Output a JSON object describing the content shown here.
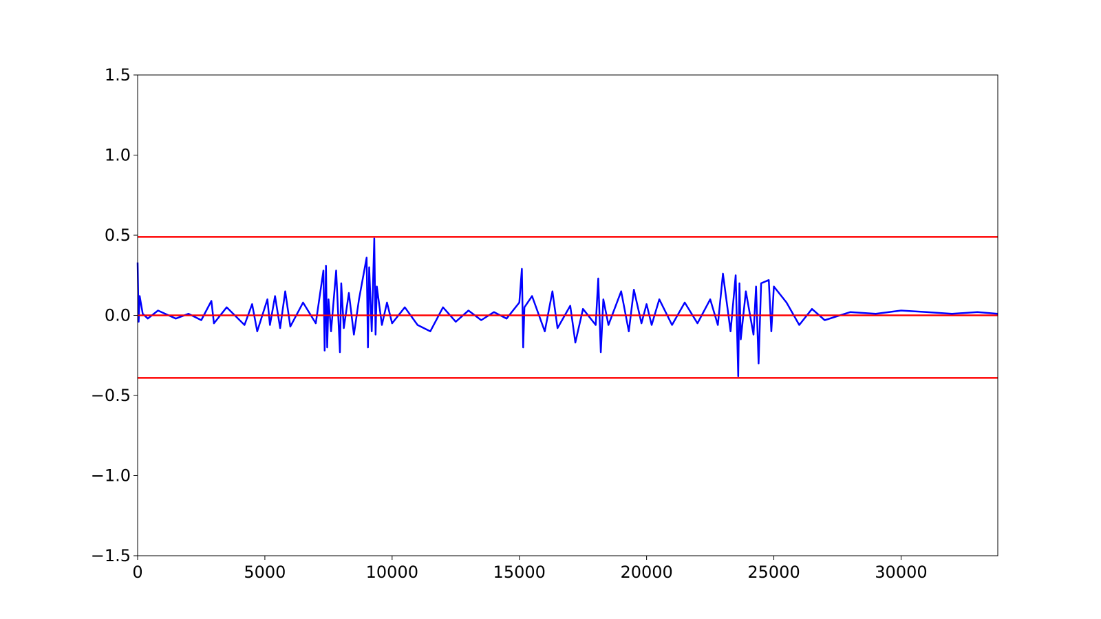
{
  "chart_data": {
    "type": "line",
    "title": "",
    "xlabel": "",
    "ylabel": "",
    "xlim": [
      0,
      33800
    ],
    "ylim": [
      -1.5,
      1.5
    ],
    "grid": false,
    "x_ticks": [
      {
        "value": 0,
        "label": "0"
      },
      {
        "value": 5000,
        "label": "5000"
      },
      {
        "value": 10000,
        "label": "10000"
      },
      {
        "value": 15000,
        "label": "15000"
      },
      {
        "value": 20000,
        "label": "20000"
      },
      {
        "value": 25000,
        "label": "25000"
      },
      {
        "value": 30000,
        "label": "30000"
      }
    ],
    "y_ticks": [
      {
        "value": 1.5,
        "label": "1.5"
      },
      {
        "value": 1.0,
        "label": "1.0"
      },
      {
        "value": 0.5,
        "label": "0.5"
      },
      {
        "value": 0.0,
        "label": "0.0"
      },
      {
        "value": -0.5,
        "label": "−0.5"
      },
      {
        "value": -1.0,
        "label": "−1.0"
      },
      {
        "value": -1.5,
        "label": "−1.5"
      }
    ],
    "series": [
      {
        "color": "#0000ff",
        "x": [
          0,
          40,
          80,
          200,
          400,
          800,
          1500,
          2000,
          2500,
          2900,
          3000,
          3500,
          4200,
          4500,
          4700,
          5100,
          5200,
          5400,
          5600,
          5800,
          6000,
          6500,
          7000,
          7300,
          7350,
          7400,
          7450,
          7500,
          7600,
          7800,
          7950,
          8000,
          8100,
          8300,
          8500,
          8700,
          9000,
          9050,
          9100,
          9200,
          9300,
          9350,
          9400,
          9600,
          9800,
          10000,
          10500,
          11000,
          11500,
          12000,
          12500,
          13000,
          13500,
          14000,
          14500,
          15000,
          15100,
          15150,
          15200,
          15500,
          16000,
          16300,
          16500,
          17000,
          17200,
          17500,
          18000,
          18100,
          18200,
          18300,
          18500,
          19000,
          19300,
          19500,
          19800,
          20000,
          20200,
          20500,
          21000,
          21500,
          22000,
          22500,
          22800,
          23000,
          23300,
          23500,
          23600,
          23650,
          23700,
          23900,
          24200,
          24300,
          24400,
          24500,
          24800,
          24900,
          25000,
          25500,
          26000,
          26500,
          27000,
          28000,
          29000,
          30000,
          31000,
          32000,
          33000,
          33800
        ],
        "y": [
          0.33,
          -0.04,
          0.12,
          0.01,
          -0.02,
          0.03,
          -0.02,
          0.01,
          -0.03,
          0.09,
          -0.05,
          0.05,
          -0.06,
          0.07,
          -0.1,
          0.1,
          -0.06,
          0.12,
          -0.08,
          0.15,
          -0.07,
          0.08,
          -0.05,
          0.28,
          -0.22,
          0.31,
          -0.2,
          0.1,
          -0.1,
          0.28,
          -0.23,
          0.2,
          -0.08,
          0.14,
          -0.12,
          0.1,
          0.36,
          -0.2,
          0.3,
          -0.1,
          0.48,
          -0.12,
          0.18,
          -0.06,
          0.08,
          -0.05,
          0.05,
          -0.06,
          -0.1,
          0.05,
          -0.04,
          0.03,
          -0.03,
          0.02,
          -0.02,
          0.08,
          0.29,
          -0.2,
          0.05,
          0.12,
          -0.1,
          0.15,
          -0.08,
          0.06,
          -0.17,
          0.04,
          -0.06,
          0.23,
          -0.23,
          0.1,
          -0.06,
          0.15,
          -0.1,
          0.16,
          -0.05,
          0.07,
          -0.06,
          0.1,
          -0.06,
          0.08,
          -0.05,
          0.1,
          -0.06,
          0.26,
          -0.1,
          0.25,
          -0.38,
          0.2,
          -0.15,
          0.15,
          -0.12,
          0.18,
          -0.3,
          0.2,
          0.22,
          -0.1,
          0.18,
          0.08,
          -0.06,
          0.04,
          -0.03,
          0.02,
          0.01,
          0.03,
          0.02,
          0.01,
          0.02,
          0.01
        ]
      }
    ],
    "hlines": [
      {
        "y": 0.49,
        "color": "#ff0000"
      },
      {
        "y": 0.0,
        "color": "#ff0000"
      },
      {
        "y": -0.39,
        "color": "#ff0000"
      }
    ]
  }
}
